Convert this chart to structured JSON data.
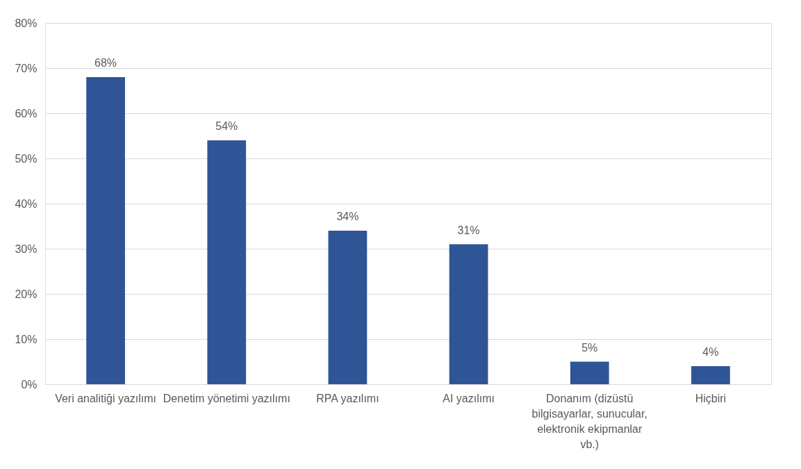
{
  "chart_data": {
    "type": "bar",
    "categories": [
      "Veri analitiği yazılımı",
      "Denetim yönetimi yazılımı",
      "RPA yazılımı",
      "AI yazılımı",
      "Donanım (dizüstü bilgisayarlar, sunucular, elektronik ekipmanlar vb.)",
      "Hiçbiri"
    ],
    "values": [
      68,
      54,
      34,
      31,
      5,
      4
    ],
    "value_labels": [
      "68%",
      "54%",
      "34%",
      "31%",
      "5%",
      "4%"
    ],
    "color": "#2f5597",
    "ylim": [
      0,
      80
    ],
    "yticks": [
      {
        "value": 0,
        "label": "0%"
      },
      {
        "value": 10,
        "label": "10%"
      },
      {
        "value": 20,
        "label": "20%"
      },
      {
        "value": 30,
        "label": "30%"
      },
      {
        "value": 40,
        "label": "40%"
      },
      {
        "value": 50,
        "label": "50%"
      },
      {
        "value": 60,
        "label": "60%"
      },
      {
        "value": 70,
        "label": "70%"
      },
      {
        "value": 80,
        "label": "80%"
      }
    ],
    "grid": "y"
  }
}
